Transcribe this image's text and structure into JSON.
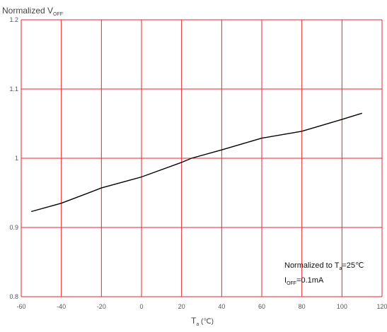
{
  "chart_data": {
    "type": "line",
    "title": "",
    "ylabel": {
      "main": "Normalized V",
      "sub": "OFF"
    },
    "xlabel": {
      "main": "T",
      "sub": "a",
      "unit": " (℃)"
    },
    "xlim": [
      -60,
      120
    ],
    "ylim": [
      0.8,
      1.2
    ],
    "x_ticks": [
      -60,
      -40,
      -20,
      0,
      20,
      40,
      60,
      80,
      100,
      120
    ],
    "y_ticks": [
      0.8,
      0.9,
      1.0,
      1.1,
      1.2
    ],
    "x_tick_labels": [
      "-60",
      "-40",
      "-20",
      "0",
      "20",
      "40",
      "60",
      "80",
      "100",
      "120"
    ],
    "y_tick_labels": [
      "0.8",
      "0.9",
      "1",
      "1.1",
      "1.2"
    ],
    "grid": true,
    "grid_color": "#e8242b",
    "line_color": "#000000",
    "series": [
      {
        "x": [
          -55,
          -40,
          -20,
          0,
          20,
          25,
          40,
          60,
          80,
          100,
          110
        ],
        "y": [
          0.923,
          0.935,
          0.957,
          0.973,
          0.994,
          1.0,
          1.012,
          1.029,
          1.039,
          1.056,
          1.065
        ]
      }
    ],
    "annotation": {
      "line1": {
        "pre": "Normalized to T",
        "sub": "a",
        "post": "=25℃"
      },
      "line2": {
        "pre": "I",
        "sub": "OFF",
        "post": "=0.1mA"
      }
    }
  }
}
